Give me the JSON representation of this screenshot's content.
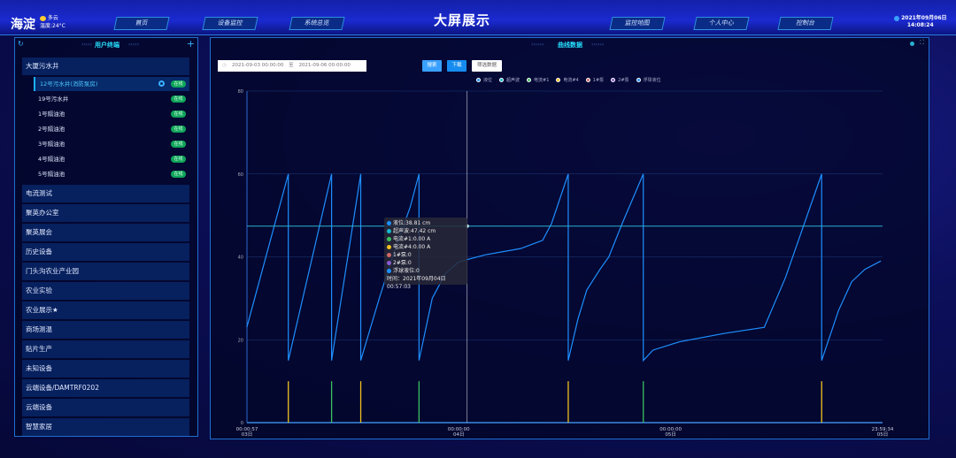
{
  "header": {
    "city": "海淀",
    "weather": "多云",
    "temperature": "温度:24°C",
    "title": "大屏展示",
    "date": "2021年09月06日",
    "time": "14:08:24",
    "nav": [
      "首页",
      "设备监控",
      "系统总览",
      "监控地图",
      "个人中心",
      "控制台"
    ]
  },
  "sidebar": {
    "title": "用户终端",
    "groups": [
      {
        "label": "大厦污水井",
        "expanded": true,
        "items": [
          {
            "label": "12号污水井(消防泵房)",
            "status": "在线",
            "active": true
          },
          {
            "label": "19号污水井",
            "status": "在线"
          },
          {
            "label": "1号隔油池",
            "status": "在线"
          },
          {
            "label": "2号隔油池",
            "status": "在线"
          },
          {
            "label": "3号隔油池",
            "status": "在线"
          },
          {
            "label": "4号隔油池",
            "status": "在线"
          },
          {
            "label": "5号隔油池",
            "status": "在线"
          }
        ]
      },
      {
        "label": "电流测试"
      },
      {
        "label": "聚英办公室"
      },
      {
        "label": "聚英展会"
      },
      {
        "label": "历史设备"
      },
      {
        "label": "门头沟农业产业园"
      },
      {
        "label": "农业实验"
      },
      {
        "label": "农业展示★"
      },
      {
        "label": "商场测温"
      },
      {
        "label": "贴片生产"
      },
      {
        "label": "未知设备"
      },
      {
        "label": "云端设备/DAMTRF0202"
      },
      {
        "label": "云端设备"
      },
      {
        "label": "智慧家居"
      }
    ]
  },
  "main": {
    "title": "曲线数据",
    "start_date": "2021-09-03 00:00:00",
    "separator": "至",
    "end_date": "2021-09-06 00:00:00",
    "buttons": {
      "search": "搜索",
      "download": "下载",
      "filter": "筛选数据"
    }
  },
  "tooltip": {
    "lines": [
      {
        "label": "液位:38.81 cm",
        "color": "#1e90ff"
      },
      {
        "label": "超声波:47.42 cm",
        "color": "#17b8d0"
      },
      {
        "label": "电流#1:0.00 A",
        "color": "#3cc060"
      },
      {
        "label": "电流#4:0.00 A",
        "color": "#f0c020"
      },
      {
        "label": "1#泵:0",
        "color": "#d06a6a"
      },
      {
        "label": "2#泵:0",
        "color": "#8a5ad0"
      },
      {
        "label": "浮球液位:0",
        "color": "#1e90ff"
      }
    ],
    "time": "时间：2021年09月04日 00:57:03"
  },
  "chart_data": {
    "type": "line",
    "ylim": [
      0,
      80
    ],
    "yticks": [
      "0",
      "20",
      "40",
      "60",
      "80"
    ],
    "xlim": [
      "2021-09-03 00:00:57",
      "2021-09-05 23:59:34"
    ],
    "xticks": [
      {
        "time": "00:00:57",
        "day": "03日",
        "at": "2021-09-03 00:00:57"
      },
      {
        "time": "00:00:00",
        "day": "04日",
        "at": "2021-09-04 00:00:00"
      },
      {
        "time": "00:00:00",
        "day": "05日",
        "at": "2021-09-05 00:00:00"
      },
      {
        "time": "23:59:34",
        "day": "05日",
        "at": "2021-09-05 23:59:34"
      }
    ],
    "legend": [
      "液位",
      "超声波",
      "电流#1",
      "电流#4",
      "1#泵",
      "2#泵",
      "浮球液位"
    ],
    "legend_colors": [
      "#1e90ff",
      "#17b8d0",
      "#3cc060",
      "#f0c020",
      "#d06a6a",
      "#8a5ad0",
      "#1e90ff"
    ],
    "legend_position": "top-right",
    "crosshair": {
      "x": "2021-09-04 00:57:03",
      "y": 47.42
    },
    "series": [
      {
        "name": "液位",
        "color": "#1e8fff",
        "points": [
          [
            "2021-09-03 00:00",
            23
          ],
          [
            "2021-09-03 04:42",
            60
          ],
          [
            "2021-09-03 04:42",
            15
          ],
          [
            "2021-09-03 09:36",
            60
          ],
          [
            "2021-09-03 09:36",
            15
          ],
          [
            "2021-09-03 12:54",
            60
          ],
          [
            "2021-09-03 12:54",
            15
          ],
          [
            "2021-09-03 15:00",
            30
          ],
          [
            "2021-09-03 16:30",
            40
          ],
          [
            "2021-09-03 18:30",
            52
          ],
          [
            "2021-09-03 19:30",
            60
          ],
          [
            "2021-09-03 19:30",
            15
          ],
          [
            "2021-09-03 21:00",
            30
          ],
          [
            "2021-09-03 22:30",
            36
          ],
          [
            "2021-09-04 00:00",
            38.8
          ],
          [
            "2021-09-04 03:00",
            40.5
          ],
          [
            "2021-09-04 07:00",
            42
          ],
          [
            "2021-09-04 09:30",
            44
          ],
          [
            "2021-09-04 10:30",
            48
          ],
          [
            "2021-09-04 12:24",
            60
          ],
          [
            "2021-09-04 12:24",
            15
          ],
          [
            "2021-09-04 13:30",
            25
          ],
          [
            "2021-09-04 14:30",
            32
          ],
          [
            "2021-09-04 16:00",
            37
          ],
          [
            "2021-09-04 17:00",
            40
          ],
          [
            "2021-09-04 18:30",
            48
          ],
          [
            "2021-09-04 20:54",
            60
          ],
          [
            "2021-09-04 20:54",
            15
          ],
          [
            "2021-09-04 22:00",
            17.5
          ],
          [
            "2021-09-05 01:00",
            19.5
          ],
          [
            "2021-09-05 06:00",
            21.5
          ],
          [
            "2021-09-05 10:36",
            23
          ],
          [
            "2021-09-05 13:00",
            35
          ],
          [
            "2021-09-05 17:06",
            60
          ],
          [
            "2021-09-05 17:06",
            15
          ],
          [
            "2021-09-05 19:00",
            27
          ],
          [
            "2021-09-05 20:30",
            34
          ],
          [
            "2021-09-05 22:00",
            37
          ],
          [
            "2021-09-05 23:48",
            39
          ]
        ]
      },
      {
        "name": "电流#1",
        "color": "#3cc060",
        "bars": [
          [
            "2021-09-03 09:36",
            10
          ],
          [
            "2021-09-03 19:30",
            10
          ],
          [
            "2021-09-04 20:54",
            10
          ]
        ]
      },
      {
        "name": "电流#4",
        "color": "#f0c020",
        "bars": [
          [
            "2021-09-03 04:42",
            10
          ],
          [
            "2021-09-03 12:54",
            10
          ],
          [
            "2021-09-04 12:24",
            10
          ],
          [
            "2021-09-05 17:06",
            10
          ]
        ]
      }
    ]
  }
}
